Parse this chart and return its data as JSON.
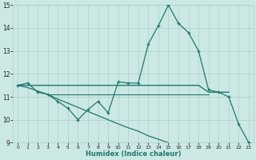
{
  "xlabel": "Humidex (Indice chaleur)",
  "x_values": [
    0,
    1,
    2,
    3,
    4,
    5,
    6,
    7,
    8,
    9,
    10,
    11,
    12,
    13,
    14,
    15,
    16,
    17,
    18,
    19,
    20,
    21,
    22,
    23
  ],
  "line1_y": [
    11.5,
    11.6,
    11.2,
    11.1,
    10.8,
    10.5,
    10.0,
    10.45,
    10.8,
    10.3,
    11.65,
    11.6,
    11.6,
    13.3,
    14.1,
    15.0,
    14.2,
    13.8,
    13.0,
    11.3,
    11.2,
    11.0,
    9.8,
    9.0
  ],
  "line2_y_x": [
    0,
    1,
    2,
    3,
    4,
    5,
    6,
    7,
    8,
    9,
    10,
    11,
    12,
    13,
    14,
    15,
    16,
    17,
    18,
    19,
    20,
    21
  ],
  "line2_y_v": [
    11.5,
    11.5,
    11.5,
    11.5,
    11.5,
    11.5,
    11.5,
    11.5,
    11.5,
    11.5,
    11.5,
    11.5,
    11.5,
    11.5,
    11.5,
    11.5,
    11.5,
    11.5,
    11.5,
    11.2,
    11.2,
    11.2
  ],
  "line3_y_x": [
    3,
    4,
    5,
    6,
    7,
    8,
    9,
    10,
    11,
    12,
    13,
    14,
    15,
    16,
    17,
    18,
    19
  ],
  "line3_y_v": [
    11.1,
    11.1,
    11.1,
    11.1,
    11.1,
    11.1,
    11.1,
    11.1,
    11.1,
    11.1,
    11.1,
    11.1,
    11.1,
    11.1,
    11.1,
    11.1,
    11.1
  ],
  "line4_y_x": [
    0,
    1,
    2,
    3,
    4,
    5,
    6,
    7,
    8,
    9,
    10,
    11,
    12,
    13,
    14,
    15,
    16,
    17,
    18,
    19,
    20,
    21,
    22,
    23
  ],
  "line4_y_v": [
    11.5,
    11.4,
    11.25,
    11.1,
    10.9,
    10.72,
    10.54,
    10.36,
    10.18,
    10.0,
    9.82,
    9.65,
    9.5,
    9.3,
    9.15,
    9.0,
    null,
    null,
    null,
    null,
    null,
    null,
    null,
    null
  ],
  "line_color": "#1a7a6e",
  "bg_color": "#cce8e4",
  "grid_color": "#aacfcb",
  "ylim": [
    9,
    15
  ],
  "xlim": [
    -0.5,
    23.5
  ],
  "yticks": [
    9,
    10,
    11,
    12,
    13,
    14,
    15
  ]
}
